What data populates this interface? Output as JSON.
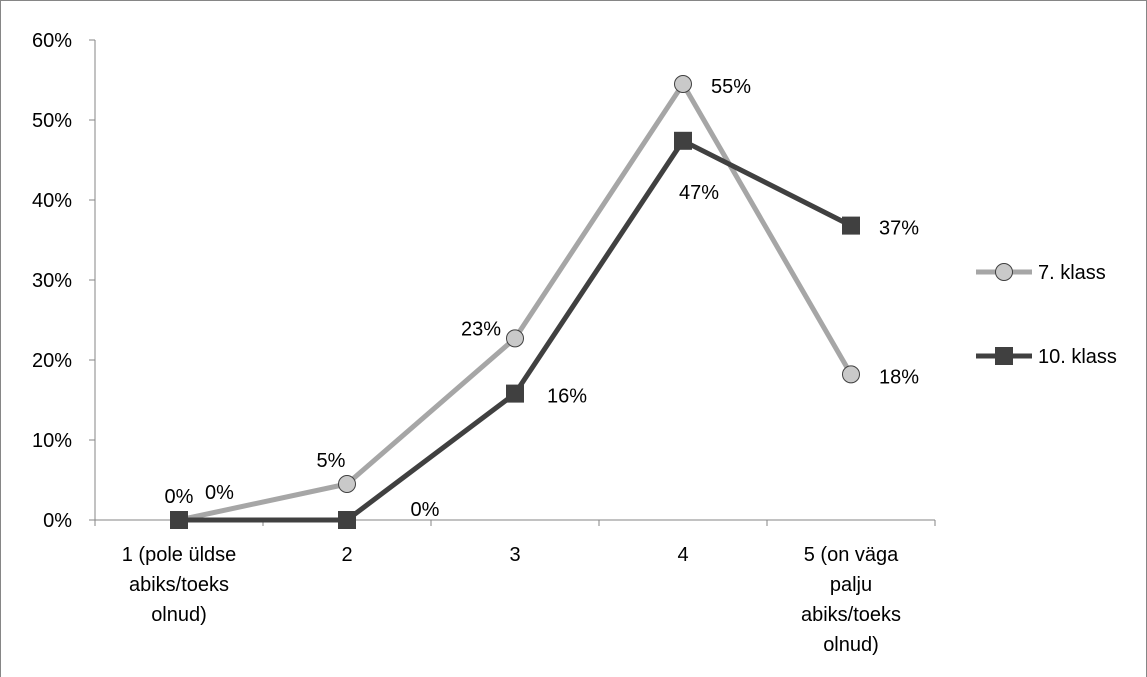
{
  "chart_data": {
    "type": "line",
    "title": "",
    "xlabel": "",
    "ylabel": "",
    "categories": [
      [
        "1 (pole üldse",
        "abiks/toeks",
        "olnud)"
      ],
      [
        "2"
      ],
      [
        "3"
      ],
      [
        "4"
      ],
      [
        "5 (on väga",
        "palju",
        "abiks/toeks",
        "olnud)"
      ]
    ],
    "ylim": [
      0,
      0.6
    ],
    "yticks": [
      {
        "value": 0,
        "label": "0%"
      },
      {
        "value": 0.1,
        "label": "10%"
      },
      {
        "value": 0.2,
        "label": "20%"
      },
      {
        "value": 0.3,
        "label": "30%"
      },
      {
        "value": 0.4,
        "label": "40%"
      },
      {
        "value": 0.5,
        "label": "50%"
      },
      {
        "value": 0.6,
        "label": "60%"
      }
    ],
    "grid": false,
    "legend": {
      "placement": "right"
    },
    "series": [
      {
        "name": "7. klass",
        "marker": "circle",
        "color": "#a6a6a6",
        "marker_fill": "#c9c9c9",
        "values": [
          0,
          0.045,
          0.227,
          0.545,
          0.182
        ],
        "labels": [
          "0%",
          "5%",
          "23%",
          "55%",
          "18%"
        ]
      },
      {
        "name": "10. klass",
        "marker": "square",
        "color": "#404040",
        "marker_fill": "#404040",
        "values": [
          0,
          0,
          0.158,
          0.474,
          0.368
        ],
        "labels": [
          "0%",
          "0%",
          "16%",
          "47%",
          "37%"
        ]
      }
    ]
  }
}
